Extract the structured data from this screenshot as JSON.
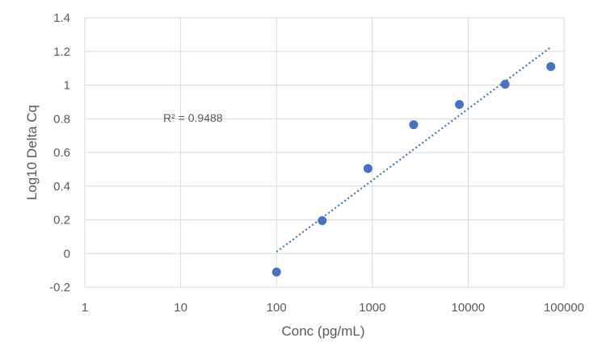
{
  "chart_data": {
    "type": "scatter",
    "title": "",
    "xlabel": "Conc (pg/mL)",
    "ylabel": "Log10 Delta Cq",
    "x_scale": "log",
    "xlim": [
      1,
      100000
    ],
    "ylim": [
      -0.2,
      1.4
    ],
    "x_ticks": [
      1,
      10,
      100,
      1000,
      10000,
      100000
    ],
    "x_tick_labels": [
      "1",
      "10",
      "100",
      "1000",
      "10000",
      "100000"
    ],
    "y_ticks": [
      -0.2,
      0,
      0.2,
      0.4,
      0.6,
      0.8,
      1,
      1.2,
      1.4
    ],
    "y_tick_labels": [
      "-0.2",
      "0",
      "0.2",
      "0.4",
      "0.6",
      "0.8",
      "1",
      "1.2",
      "1.4"
    ],
    "grid": true,
    "series": [
      {
        "x": [
          100,
          300,
          900,
          2700,
          8100,
          24300,
          72900
        ],
        "y": [
          -0.11,
          0.195,
          0.505,
          0.765,
          0.885,
          1.005,
          1.11
        ],
        "color": "#4472C4"
      }
    ],
    "trendline": {
      "type": "log",
      "style": "dotted",
      "color": "#4472C4",
      "x_start": 100,
      "x_end": 72900,
      "y_start": 0.01,
      "y_end": 1.225
    },
    "annotation": "R² = 0.9488"
  }
}
